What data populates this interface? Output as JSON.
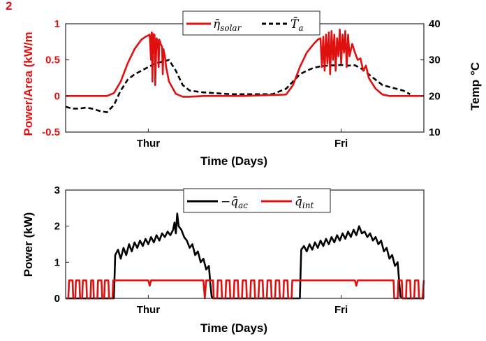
{
  "chart_data": [
    {
      "type": "line",
      "xlabel": "Time (Days)",
      "x_tick_labels": [
        {
          "x": 0.6,
          "label": "Thur"
        },
        {
          "x": 2.0,
          "label": "Fri"
        }
      ],
      "xlim": [
        0,
        2.6
      ],
      "ylabel_left": "Power/Area (kW/m",
      "ylabel_left_sup": "2",
      "ylim_left": [
        -0.5,
        1
      ],
      "yticks_left": [
        "-0.5",
        "0",
        "0.5",
        "1"
      ],
      "ylabel_right": "Temp",
      "ylabel_right_unit": "°C",
      "ylim_right": [
        10,
        40
      ],
      "yticks_right": [
        "10",
        "20",
        "30",
        "40"
      ],
      "legend_position": "top-center",
      "colors": {
        "solar": "#e01010",
        "temp": "#000000",
        "left_axis": "#e01010"
      },
      "series": [
        {
          "name": "η̄",
          "name_sub": "solar",
          "axis": "left",
          "style": "solid",
          "x": [
            0,
            0.3,
            0.35,
            0.4,
            0.45,
            0.5,
            0.55,
            0.58,
            0.61,
            0.62,
            0.625,
            0.63,
            0.635,
            0.64,
            0.645,
            0.65,
            0.66,
            0.67,
            0.675,
            0.68,
            0.69,
            0.7,
            0.705,
            0.71,
            0.72,
            0.73,
            0.75,
            0.8,
            0.85,
            0.9,
            1.0,
            1.3,
            1.6,
            1.65,
            1.7,
            1.75,
            1.8,
            1.83,
            1.85,
            1.86,
            1.87,
            1.88,
            1.89,
            1.9,
            1.91,
            1.92,
            1.93,
            1.94,
            1.95,
            1.96,
            1.97,
            1.98,
            1.99,
            2.0,
            2.01,
            2.02,
            2.03,
            2.04,
            2.05,
            2.06,
            2.08,
            2.1,
            2.12,
            2.14,
            2.16,
            2.18,
            2.2,
            2.25,
            2.3,
            2.35,
            2.4,
            2.6
          ],
          "values": [
            0,
            0,
            0.04,
            0.2,
            0.45,
            0.65,
            0.78,
            0.82,
            0.85,
            0.5,
            0.88,
            0.2,
            0.86,
            0.6,
            0.85,
            0.15,
            0.8,
            0.75,
            0.4,
            0.78,
            0.72,
            0.68,
            0.3,
            0.65,
            0.55,
            0.4,
            0.2,
            0.03,
            -0.01,
            -0.01,
            0,
            0,
            0.02,
            0.15,
            0.4,
            0.6,
            0.72,
            0.78,
            0.8,
            0.4,
            0.82,
            0.35,
            0.85,
            0.45,
            0.88,
            0.3,
            0.9,
            0.5,
            0.85,
            0.35,
            0.8,
            0.55,
            0.92,
            0.45,
            0.85,
            0.6,
            0.9,
            0.4,
            0.85,
            0.55,
            0.72,
            0.6,
            0.5,
            0.52,
            0.35,
            0.42,
            0.25,
            0.1,
            0.02,
            0,
            0,
            0
          ]
        },
        {
          "name": "T̄",
          "name_sub": "a",
          "axis": "right",
          "style": "dashed",
          "x": [
            0,
            0.05,
            0.1,
            0.15,
            0.2,
            0.25,
            0.3,
            0.35,
            0.4,
            0.45,
            0.5,
            0.55,
            0.6,
            0.65,
            0.7,
            0.75,
            0.8,
            0.85,
            0.9,
            1.0,
            1.2,
            1.5,
            1.6,
            1.65,
            1.7,
            1.75,
            1.8,
            1.85,
            1.9,
            1.95,
            2.0,
            2.05,
            2.1,
            2.15,
            2.2,
            2.25,
            2.3,
            2.35,
            2.4,
            2.45,
            2.5
          ],
          "values": [
            17,
            16.5,
            16.5,
            16.8,
            16.4,
            15.8,
            15.5,
            17.5,
            21.5,
            24.5,
            26,
            27,
            28,
            29,
            29.5,
            30,
            27,
            23,
            21.5,
            21,
            20.5,
            20.5,
            22,
            24,
            26,
            27,
            27.8,
            28.2,
            28.4,
            28.5,
            28.6,
            28.4,
            28.5,
            27.5,
            26,
            24.5,
            23,
            22.5,
            22,
            21.5,
            20.5
          ]
        }
      ]
    },
    {
      "type": "line",
      "xlabel": "Time (Days)",
      "x_tick_labels": [
        {
          "x": 0.6,
          "label": "Thur"
        },
        {
          "x": 2.0,
          "label": "Fri"
        }
      ],
      "xlim": [
        0,
        2.6
      ],
      "ylabel": "Power (kW)",
      "ylim": [
        0,
        3
      ],
      "yticks": [
        "0",
        "1",
        "2",
        "3"
      ],
      "legend_position": "top-center",
      "colors": {
        "ac": "#000000",
        "int": "#e01010"
      },
      "series": [
        {
          "name": "−q̄",
          "name_sub": "ac",
          "style": "solid",
          "x": [
            0,
            0.35,
            0.36,
            0.38,
            0.4,
            0.42,
            0.44,
            0.46,
            0.48,
            0.5,
            0.52,
            0.54,
            0.56,
            0.58,
            0.6,
            0.62,
            0.64,
            0.66,
            0.68,
            0.7,
            0.72,
            0.74,
            0.76,
            0.78,
            0.79,
            0.8,
            0.81,
            0.82,
            0.84,
            0.86,
            0.88,
            0.9,
            0.92,
            0.94,
            0.96,
            0.98,
            1.0,
            1.02,
            1.04,
            1.05,
            1.06,
            1.07,
            1.7,
            1.71,
            1.73,
            1.75,
            1.77,
            1.79,
            1.81,
            1.83,
            1.85,
            1.87,
            1.89,
            1.91,
            1.93,
            1.95,
            1.97,
            1.99,
            2.01,
            2.03,
            2.05,
            2.07,
            2.09,
            2.11,
            2.13,
            2.15,
            2.17,
            2.19,
            2.21,
            2.23,
            2.25,
            2.27,
            2.29,
            2.31,
            2.33,
            2.35,
            2.37,
            2.39,
            2.41,
            2.42,
            2.43,
            2.45,
            2.6
          ],
          "values": [
            0,
            0,
            1.2,
            1.35,
            1.1,
            1.4,
            1.2,
            1.5,
            1.3,
            1.55,
            1.4,
            1.6,
            1.45,
            1.65,
            1.5,
            1.7,
            1.55,
            1.75,
            1.6,
            1.8,
            1.7,
            1.85,
            1.75,
            1.9,
            2.1,
            1.8,
            2.35,
            2.0,
            1.9,
            1.7,
            1.6,
            1.4,
            1.5,
            1.2,
            1.3,
            1.0,
            1.1,
            0.8,
            0.9,
            0.4,
            0.05,
            0,
            0,
            1.35,
            1.45,
            1.3,
            1.5,
            1.35,
            1.55,
            1.4,
            1.6,
            1.45,
            1.65,
            1.5,
            1.7,
            1.55,
            1.75,
            1.6,
            1.8,
            1.65,
            1.85,
            1.7,
            1.9,
            1.75,
            2.0,
            1.8,
            1.85,
            1.7,
            1.8,
            1.6,
            1.7,
            1.5,
            1.6,
            1.3,
            1.4,
            1.1,
            1.2,
            0.9,
            1.0,
            0.5,
            0.05,
            0,
            0
          ]
        },
        {
          "name": "q̄",
          "name_sub": "int",
          "style": "solid",
          "x": [
            0,
            0.02,
            0.025,
            0.05,
            0.055,
            0.07,
            0.075,
            0.1,
            0.105,
            0.12,
            0.125,
            0.15,
            0.155,
            0.18,
            0.185,
            0.2,
            0.205,
            0.23,
            0.235,
            0.26,
            0.265,
            0.28,
            0.285,
            0.31,
            0.315,
            0.34,
            0.345,
            0.37,
            0.38,
            0.6,
            0.61,
            0.62,
            0.63,
            1.0,
            1.01,
            1.02,
            1.03,
            1.07,
            1.075,
            1.1,
            1.105,
            1.13,
            1.135,
            1.16,
            1.165,
            1.19,
            1.195,
            1.22,
            1.225,
            1.25,
            1.255,
            1.28,
            1.285,
            1.31,
            1.315,
            1.34,
            1.345,
            1.37,
            1.375,
            1.4,
            1.405,
            1.43,
            1.435,
            1.46,
            1.465,
            1.49,
            1.495,
            1.52,
            1.525,
            1.55,
            1.555,
            1.58,
            1.585,
            1.61,
            1.615,
            1.64,
            1.645,
            1.67,
            1.68,
            2.1,
            2.11,
            2.12,
            2.13,
            2.38,
            2.385,
            2.41,
            2.415,
            2.44,
            2.445,
            2.47,
            2.475,
            2.5,
            2.505,
            2.53,
            2.535,
            2.56,
            2.565,
            2.59,
            2.6
          ],
          "values": [
            0,
            0,
            0.5,
            0.5,
            0,
            0,
            0.5,
            0.5,
            0,
            0,
            0.5,
            0.5,
            0,
            0,
            0.5,
            0.5,
            0,
            0,
            0.5,
            0.5,
            0,
            0,
            0.5,
            0.5,
            0,
            0,
            0.5,
            0.5,
            0.5,
            0.5,
            0.35,
            0.5,
            0.5,
            0.5,
            0,
            0.5,
            0.5,
            0.5,
            0,
            0,
            0.5,
            0.5,
            0,
            0,
            0.5,
            0.5,
            0,
            0,
            0.5,
            0.5,
            0,
            0,
            0.5,
            0.5,
            0,
            0,
            0.5,
            0.5,
            0,
            0,
            0.5,
            0.5,
            0,
            0,
            0.5,
            0.5,
            0,
            0,
            0.5,
            0.5,
            0,
            0,
            0.5,
            0.5,
            0,
            0,
            0.5,
            0.5,
            0.5,
            0.5,
            0.35,
            0.5,
            0.5,
            0.5,
            0,
            0,
            0.5,
            0.5,
            0,
            0,
            0.5,
            0.5,
            0,
            0,
            0.5,
            0.5,
            0,
            0,
            0.5
          ]
        }
      ]
    }
  ]
}
